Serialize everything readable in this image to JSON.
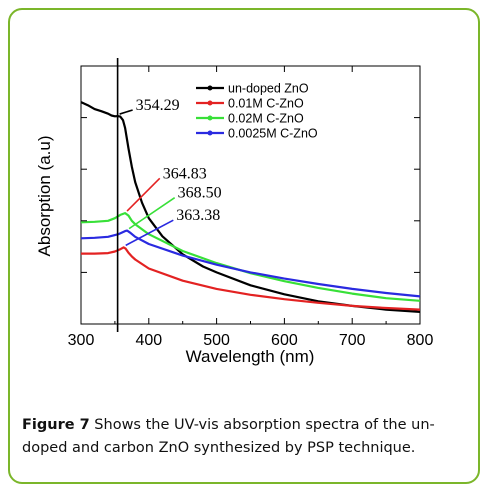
{
  "caption": {
    "label": "Figure 7",
    "text": " Shows the UV-vis absorption spectra of the un-doped and carbon ZnO synthesized by PSP technique."
  },
  "chart_data": {
    "type": "line",
    "xlabel": "Wavelength (nm)",
    "ylabel": "Absorption (a.u)",
    "xlim": [
      300,
      800
    ],
    "ylim": [
      0,
      1.0
    ],
    "xticks": [
      300,
      400,
      500,
      600,
      700,
      800
    ],
    "yticks_labeled": false,
    "grid": false,
    "legend_position": "top-right",
    "vertical_line_x": 354,
    "series": [
      {
        "name": "un-doped ZnO",
        "color": "#000000",
        "points": [
          [
            300,
            0.86
          ],
          [
            310,
            0.848
          ],
          [
            320,
            0.833
          ],
          [
            330,
            0.825
          ],
          [
            340,
            0.815
          ],
          [
            345,
            0.808
          ],
          [
            350,
            0.805
          ],
          [
            354,
            0.806
          ],
          [
            358,
            0.804
          ],
          [
            362,
            0.79
          ],
          [
            365,
            0.76
          ],
          [
            370,
            0.68
          ],
          [
            375,
            0.61
          ],
          [
            380,
            0.55
          ],
          [
            390,
            0.47
          ],
          [
            400,
            0.41
          ],
          [
            420,
            0.34
          ],
          [
            450,
            0.27
          ],
          [
            480,
            0.223
          ],
          [
            500,
            0.2
          ],
          [
            550,
            0.15
          ],
          [
            600,
            0.115
          ],
          [
            650,
            0.088
          ],
          [
            700,
            0.07
          ],
          [
            750,
            0.056
          ],
          [
            800,
            0.047
          ]
        ]
      },
      {
        "name": "0.01M C-ZnO",
        "color": "#e32222",
        "points": [
          [
            300,
            0.273
          ],
          [
            320,
            0.273
          ],
          [
            340,
            0.275
          ],
          [
            350,
            0.281
          ],
          [
            358,
            0.29
          ],
          [
            363,
            0.297
          ],
          [
            366,
            0.292
          ],
          [
            370,
            0.276
          ],
          [
            375,
            0.262
          ],
          [
            380,
            0.25
          ],
          [
            400,
            0.215
          ],
          [
            450,
            0.168
          ],
          [
            500,
            0.136
          ],
          [
            550,
            0.113
          ],
          [
            600,
            0.096
          ],
          [
            650,
            0.082
          ],
          [
            700,
            0.07
          ],
          [
            750,
            0.062
          ],
          [
            800,
            0.056
          ]
        ]
      },
      {
        "name": "0.02M C-ZnO",
        "color": "#38e038",
        "points": [
          [
            300,
            0.394
          ],
          [
            320,
            0.396
          ],
          [
            340,
            0.4
          ],
          [
            350,
            0.41
          ],
          [
            358,
            0.423
          ],
          [
            365,
            0.43
          ],
          [
            370,
            0.42
          ],
          [
            375,
            0.4
          ],
          [
            380,
            0.387
          ],
          [
            400,
            0.348
          ],
          [
            450,
            0.283
          ],
          [
            500,
            0.236
          ],
          [
            550,
            0.197
          ],
          [
            600,
            0.166
          ],
          [
            650,
            0.14
          ],
          [
            700,
            0.118
          ],
          [
            750,
            0.1
          ],
          [
            800,
            0.09
          ]
        ]
      },
      {
        "name": "0.0025M C-ZnO",
        "color": "#2a2ae0",
        "points": [
          [
            300,
            0.332
          ],
          [
            320,
            0.334
          ],
          [
            340,
            0.338
          ],
          [
            355,
            0.348
          ],
          [
            365,
            0.36
          ],
          [
            368,
            0.362
          ],
          [
            372,
            0.355
          ],
          [
            380,
            0.338
          ],
          [
            400,
            0.31
          ],
          [
            450,
            0.265
          ],
          [
            500,
            0.23
          ],
          [
            550,
            0.2
          ],
          [
            600,
            0.176
          ],
          [
            650,
            0.155
          ],
          [
            700,
            0.136
          ],
          [
            750,
            0.12
          ],
          [
            800,
            0.107
          ]
        ]
      }
    ],
    "annotations": [
      {
        "text": "354.29",
        "x": 354,
        "y": 0.806,
        "label_x": 385,
        "label_y": 0.845
      },
      {
        "text": "364.83",
        "x": 365,
        "y": 0.43,
        "label_x": 425,
        "label_y": 0.58
      },
      {
        "text": "368.50",
        "x": 368,
        "y": 0.362,
        "label_x": 447,
        "label_y": 0.505
      },
      {
        "text": "363.38",
        "x": 363,
        "y": 0.297,
        "label_x": 445,
        "label_y": 0.418
      }
    ]
  }
}
